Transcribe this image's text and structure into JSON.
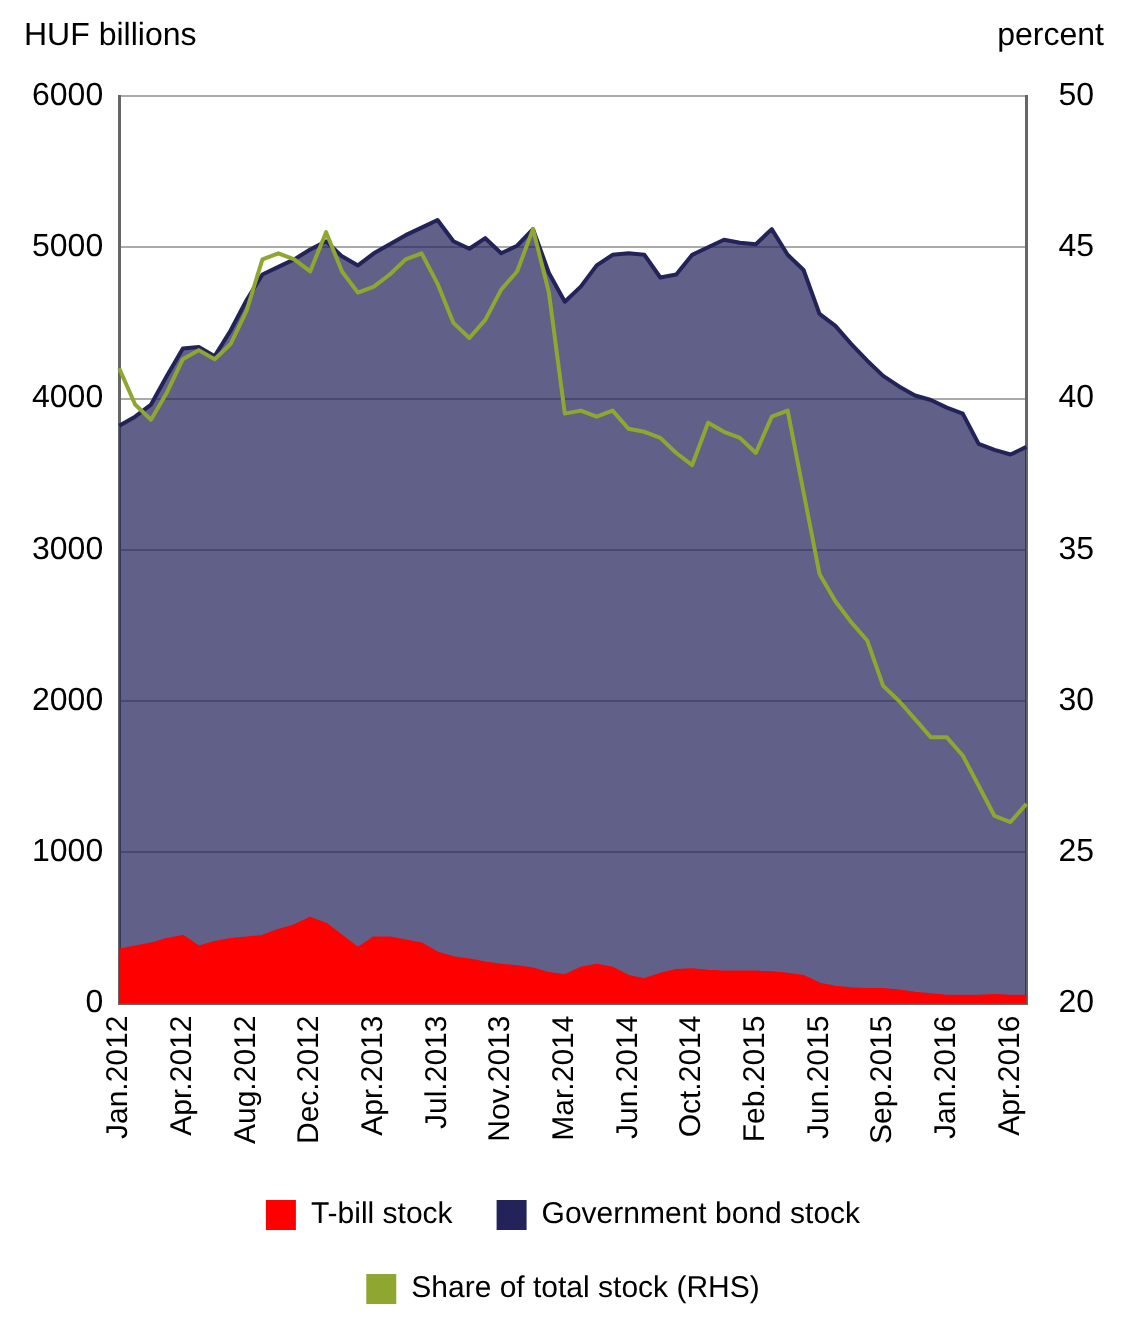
{
  "chart_data": {
    "type": "area",
    "ylabel": "HUF billions",
    "y2label": "percent",
    "categories": [
      "Jan.2012",
      null,
      null,
      null,
      "Apr.2012",
      null,
      null,
      null,
      "Aug.2012",
      null,
      null,
      null,
      "Dec.2012",
      null,
      null,
      null,
      "Apr.2013",
      null,
      null,
      null,
      "Jul.2013",
      null,
      null,
      null,
      "Nov.2013",
      null,
      null,
      null,
      "Mar.2014",
      null,
      null,
      null,
      "Jun.2014",
      null,
      null,
      null,
      "Oct.2014",
      null,
      null,
      null,
      "Feb.2015",
      null,
      null,
      null,
      "Jun.2015",
      null,
      null,
      null,
      "Sep.2015",
      null,
      null,
      null,
      "Jan.2016",
      null,
      null,
      null,
      "Apr.2016",
      null
    ],
    "series": [
      {
        "name": "T-bill stock",
        "color": "#ff0000",
        "values": [
          350,
          370,
          390,
          420,
          440,
          370,
          400,
          420,
          430,
          440,
          480,
          510,
          560,
          520,
          440,
          360,
          430,
          430,
          410,
          390,
          330,
          300,
          285,
          265,
          250,
          240,
          225,
          195,
          180,
          230,
          250,
          230,
          175,
          155,
          190,
          215,
          220,
          210,
          205,
          205,
          205,
          200,
          190,
          175,
          125,
          105,
          95,
          90,
          90,
          80,
          65,
          55,
          45,
          45,
          45,
          50,
          45,
          45
        ]
      },
      {
        "name": "Government bond stock",
        "color": "#23235a",
        "values": [
          3820,
          3880,
          3960,
          4150,
          4330,
          4340,
          4280,
          4450,
          4650,
          4820,
          4870,
          4920,
          4985,
          5040,
          4940,
          4880,
          4960,
          5020,
          5080,
          5130,
          5180,
          5040,
          4990,
          5060,
          4960,
          5010,
          5120,
          4830,
          4640,
          4740,
          4880,
          4950,
          4960,
          4950,
          4800,
          4820,
          4950,
          5000,
          5050,
          5030,
          5020,
          5120,
          4950,
          4850,
          4560,
          4480,
          4360,
          4250,
          4150,
          4080,
          4020,
          3990,
          3940,
          3900,
          3700,
          3660,
          3630,
          3680
        ]
      },
      {
        "name": "Share of total stock (RHS)",
        "type": "line",
        "axis": "y2",
        "color": "#8fa630",
        "values": [
          41.0,
          39.8,
          39.3,
          40.2,
          41.3,
          41.6,
          41.3,
          41.8,
          42.9,
          44.6,
          44.8,
          44.6,
          44.2,
          45.5,
          44.2,
          43.5,
          43.7,
          44.1,
          44.6,
          44.8,
          43.8,
          42.5,
          42.0,
          42.6,
          43.6,
          44.2,
          45.6,
          43.5,
          39.5,
          39.6,
          39.4,
          39.6,
          39.0,
          38.9,
          38.7,
          38.2,
          37.8,
          39.2,
          38.9,
          38.7,
          38.2,
          39.4,
          39.6,
          36.9,
          34.2,
          33.3,
          32.6,
          32.0,
          30.5,
          30.0,
          29.4,
          28.8,
          28.8,
          28.2,
          27.2,
          26.2,
          26.0,
          26.6
        ]
      }
    ],
    "ylim": [
      0,
      6000
    ],
    "yticks": [
      0,
      1000,
      2000,
      3000,
      4000,
      5000,
      6000
    ],
    "y2lim": [
      20,
      50
    ],
    "y2ticks": [
      20,
      25,
      30,
      35,
      40,
      45,
      50
    ],
    "grid": "y",
    "legend": "bottom"
  }
}
